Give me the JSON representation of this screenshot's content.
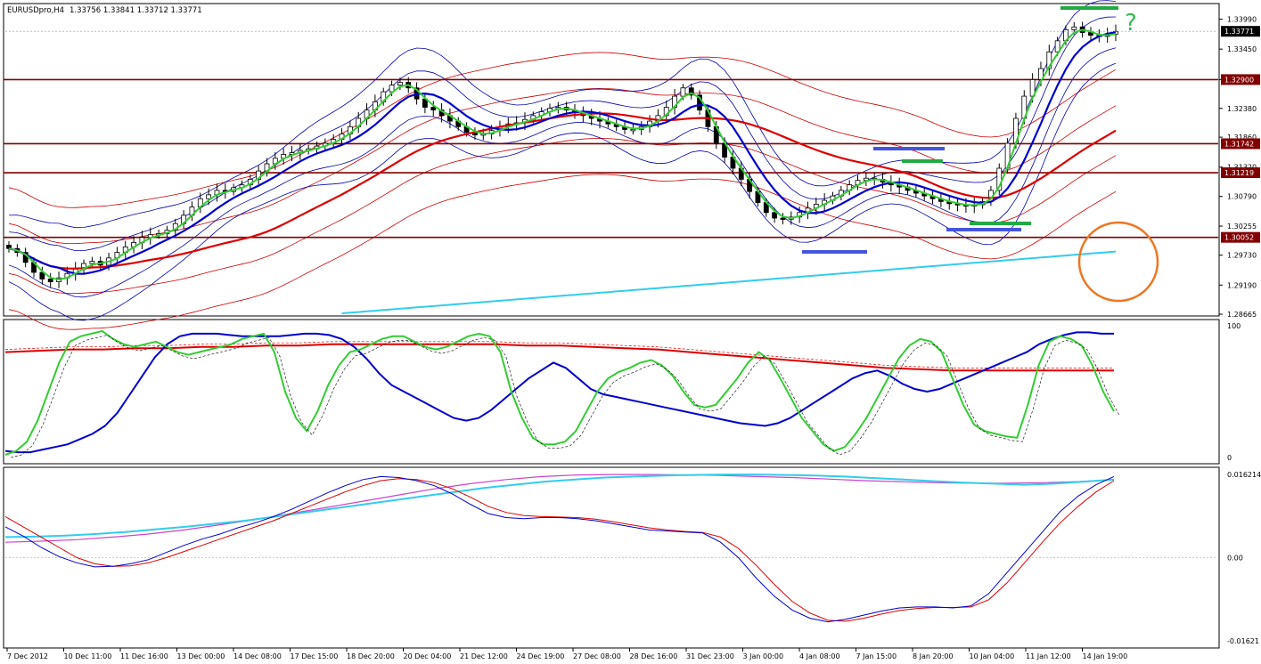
{
  "header": {
    "symbol_label": "EURUSDpro,H4",
    "ohlc": "1.33756 1.33841 1.33712 1.33771"
  },
  "colors": {
    "background": "#ffffff",
    "grid": "#c0c0c0",
    "bull_candle": "#ffffff",
    "bear_candle": "#000000",
    "level_lines": "#800000",
    "ma_fast": "#33cc33",
    "ma_mid": "#0000cc",
    "ma_slow": "#dd0000",
    "ma_long": "#33ccee",
    "bollinger": "#0000aa",
    "envelope": "#cc0000",
    "stoch_main": "#33cc33",
    "stoch_signal": "#0000cc",
    "macd_signal_slow": "#cc44cc",
    "annotation_circle": "#ee7722",
    "support_bar": "#4455dd",
    "resistance_bar": "#22aa44"
  },
  "chart_data": [
    {
      "type": "candlestick",
      "panel": "main",
      "ylim": [
        1.28665,
        1.3424
      ],
      "y_ticks": [
        "1.33990",
        "1.33450",
        "1.32900",
        "1.32380",
        "1.31860",
        "1.31320",
        "1.30790",
        "1.30255",
        "1.29730",
        "1.29190",
        "1.28665"
      ],
      "x_tick_labels": [
        "7 Dec 2012",
        "10 Dec 11:00",
        "11 Dec 16:00",
        "13 Dec 00:00",
        "14 Dec 08:00",
        "17 Dec 15:00",
        "18 Dec 20:00",
        "20 Dec 04:00",
        "21 Dec 12:00",
        "24 Dec 19:00",
        "27 Dec 08:00",
        "28 Dec 16:00",
        "31 Dec 23:00",
        "3 Jan 00:00",
        "4 Jan 08:00",
        "7 Jan 15:00",
        "8 Jan 20:00",
        "10 Jan 04:00",
        "11 Jan 12:00",
        "14 Jan 19:00"
      ],
      "current_price": "1.33771",
      "levels": [
        "1.32900",
        "1.31742",
        "1.31219",
        "1.30052"
      ],
      "annotation_text": "?",
      "series_close": [
        1.2985,
        1.2978,
        1.296,
        1.2942,
        1.293,
        1.2925,
        1.2932,
        1.294,
        1.2948,
        1.2958,
        1.2962,
        1.2955,
        1.2968,
        1.2978,
        1.2988,
        1.2996,
        1.3005,
        1.301,
        1.3012,
        1.3018,
        1.303,
        1.3045,
        1.306,
        1.3075,
        1.3082,
        1.309,
        1.3088,
        1.3095,
        1.31,
        1.311,
        1.3125,
        1.3138,
        1.3148,
        1.3155,
        1.3158,
        1.3162,
        1.3165,
        1.317,
        1.3175,
        1.3182,
        1.3192,
        1.3205,
        1.322,
        1.3235,
        1.325,
        1.3268,
        1.328,
        1.3285,
        1.3275,
        1.3255,
        1.324,
        1.3235,
        1.3225,
        1.3215,
        1.3205,
        1.3195,
        1.319,
        1.3192,
        1.3198,
        1.3205,
        1.321,
        1.3212,
        1.3218,
        1.3225,
        1.3232,
        1.3238,
        1.324,
        1.3235,
        1.323,
        1.3225,
        1.322,
        1.3215,
        1.321,
        1.3205,
        1.32,
        1.32,
        1.3205,
        1.3215,
        1.3225,
        1.324,
        1.326,
        1.3275,
        1.3262,
        1.3235,
        1.3205,
        1.3175,
        1.315,
        1.313,
        1.311,
        1.3088,
        1.3068,
        1.305,
        1.304,
        1.3038,
        1.3042,
        1.305,
        1.3058,
        1.3065,
        1.3072,
        1.308,
        1.309,
        1.31,
        1.3108,
        1.3112,
        1.311,
        1.3105,
        1.31,
        1.3096,
        1.309,
        1.3085,
        1.308,
        1.3075,
        1.307,
        1.3066,
        1.3064,
        1.3062,
        1.3064,
        1.307,
        1.309,
        1.313,
        1.3175,
        1.322,
        1.326,
        1.329,
        1.331,
        1.334,
        1.336,
        1.338,
        1.3385,
        1.3375,
        1.337,
        1.3368,
        1.3372,
        1.3377
      ]
    },
    {
      "type": "line",
      "panel": "stochastic",
      "ylim": [
        0,
        100
      ],
      "y_ticks": [
        "100",
        "0"
      ],
      "series": [
        {
          "values": [
            2,
            5,
            12,
            28,
            50,
            72,
            88,
            92,
            94,
            96,
            90,
            86,
            84,
            86,
            88,
            84,
            80,
            78,
            80,
            82,
            84,
            86,
            90,
            92,
            94,
            80,
            50,
            30,
            20,
            35,
            55,
            70,
            80,
            82,
            86,
            90,
            92,
            92,
            88,
            84,
            82,
            84,
            88,
            92,
            94,
            92,
            80,
            50,
            30,
            15,
            10,
            10,
            12,
            20,
            35,
            50,
            60,
            65,
            68,
            72,
            74,
            70,
            62,
            50,
            40,
            38,
            40,
            50,
            60,
            72,
            80,
            74,
            60,
            45,
            30,
            20,
            10,
            5,
            8,
            18,
            30,
            45,
            60,
            75,
            85,
            90,
            88,
            80,
            60,
            40,
            25,
            20,
            18,
            16,
            15,
            40,
            70,
            88,
            92,
            90,
            85,
            70,
            50,
            35
          ]
        },
        {
          "values": [
            5,
            4,
            4,
            6,
            8,
            10,
            14,
            18,
            24,
            34,
            48,
            62,
            76,
            86,
            92,
            94,
            94,
            94,
            93,
            92,
            92,
            92,
            92,
            93,
            94,
            94,
            93,
            90,
            84,
            75,
            64,
            55,
            50,
            45,
            40,
            35,
            30,
            28,
            30,
            36,
            44,
            52,
            60,
            66,
            72,
            68,
            60,
            52,
            48,
            46,
            44,
            42,
            40,
            38,
            36,
            34,
            32,
            30,
            28,
            26,
            25,
            24,
            26,
            30,
            36,
            42,
            48,
            54,
            60,
            64,
            66,
            62,
            56,
            52,
            50,
            52,
            56,
            60,
            64,
            68,
            72,
            76,
            80,
            86,
            90,
            93,
            95,
            95,
            94,
            94
          ]
        },
        {
          "values": [
            80,
            81,
            82,
            82,
            83,
            83,
            84,
            84,
            85,
            85,
            86,
            86,
            86,
            86,
            86,
            86,
            85,
            85,
            84,
            83,
            82,
            80,
            78,
            76,
            74,
            72,
            70,
            68,
            67,
            66,
            66,
            66,
            66,
            66,
            66
          ]
        }
      ]
    },
    {
      "type": "line",
      "panel": "macd",
      "ylim": [
        -0.01621,
        0.01621
      ],
      "y_ticks": [
        "0.016214",
        "0.00",
        "-0.01621"
      ],
      "series": [
        {
          "values": [
            0.006,
            0.0042,
            0.002,
            0.0002,
            -0.001,
            -0.0018,
            -0.0017,
            -0.0012,
            -0.0004,
            0.001,
            0.0024,
            0.0036,
            0.0046,
            0.0058,
            0.0068,
            0.008,
            0.0094,
            0.011,
            0.0126,
            0.014,
            0.0152,
            0.0158,
            0.0156,
            0.015,
            0.014,
            0.0124,
            0.0104,
            0.0086,
            0.0078,
            0.0076,
            0.0078,
            0.0078,
            0.0076,
            0.0072,
            0.0066,
            0.006,
            0.0054,
            0.0052,
            0.005,
            0.0048,
            0.003,
            0.0,
            -0.004,
            -0.0075,
            -0.0102,
            -0.0118,
            -0.0125,
            -0.012,
            -0.0112,
            -0.0104,
            -0.0098,
            -0.0096,
            -0.0096,
            -0.0098,
            -0.0094,
            -0.007,
            -0.003,
            0.001,
            0.005,
            0.009,
            0.012,
            0.0142,
            0.0158
          ]
        },
        {
          "values": [
            0.008,
            0.006,
            0.004,
            0.002,
            0.0,
            -0.0012,
            -0.0017,
            -0.0016,
            -0.001,
            0.0,
            0.0012,
            0.0024,
            0.0036,
            0.0048,
            0.006,
            0.0072,
            0.0086,
            0.01,
            0.0114,
            0.0128,
            0.014,
            0.015,
            0.0154,
            0.0152,
            0.0146,
            0.0134,
            0.0118,
            0.01,
            0.0088,
            0.0082,
            0.008,
            0.0079,
            0.0078,
            0.0075,
            0.007,
            0.0064,
            0.0058,
            0.0054,
            0.0051,
            0.0049,
            0.004,
            0.0018,
            -0.0015,
            -0.0052,
            -0.0085,
            -0.0108,
            -0.0122,
            -0.0124,
            -0.0118,
            -0.011,
            -0.0103,
            -0.0099,
            -0.0097,
            -0.0097,
            -0.0096,
            -0.0082,
            -0.005,
            -0.001,
            0.003,
            0.0068,
            0.01,
            0.0128,
            0.015
          ]
        },
        {
          "values": [
            0.004,
            0.0041,
            0.0043,
            0.0046,
            0.005,
            0.0055,
            0.006,
            0.0066,
            0.0072,
            0.008,
            0.0088,
            0.0096,
            0.0104,
            0.0112,
            0.012,
            0.0128,
            0.0136,
            0.0142,
            0.0148,
            0.0152,
            0.0156,
            0.0158,
            0.016,
            0.0161,
            0.0162,
            0.0162,
            0.0161,
            0.016,
            0.0158,
            0.0155,
            0.0152,
            0.0149,
            0.0146,
            0.0144,
            0.0142,
            0.0144,
            0.0148,
            0.0152
          ]
        },
        {
          "values": [
            0.003,
            0.0032,
            0.0035,
            0.004,
            0.0046,
            0.0054,
            0.0064,
            0.0074,
            0.0086,
            0.0098,
            0.011,
            0.0122,
            0.0134,
            0.0144,
            0.0152,
            0.0158,
            0.0161,
            0.0162,
            0.0162,
            0.0161,
            0.016,
            0.0158,
            0.0156,
            0.0153,
            0.015,
            0.0148,
            0.0146,
            0.0145,
            0.0145,
            0.0146,
            0.0148,
            0.0152
          ]
        }
      ]
    }
  ]
}
